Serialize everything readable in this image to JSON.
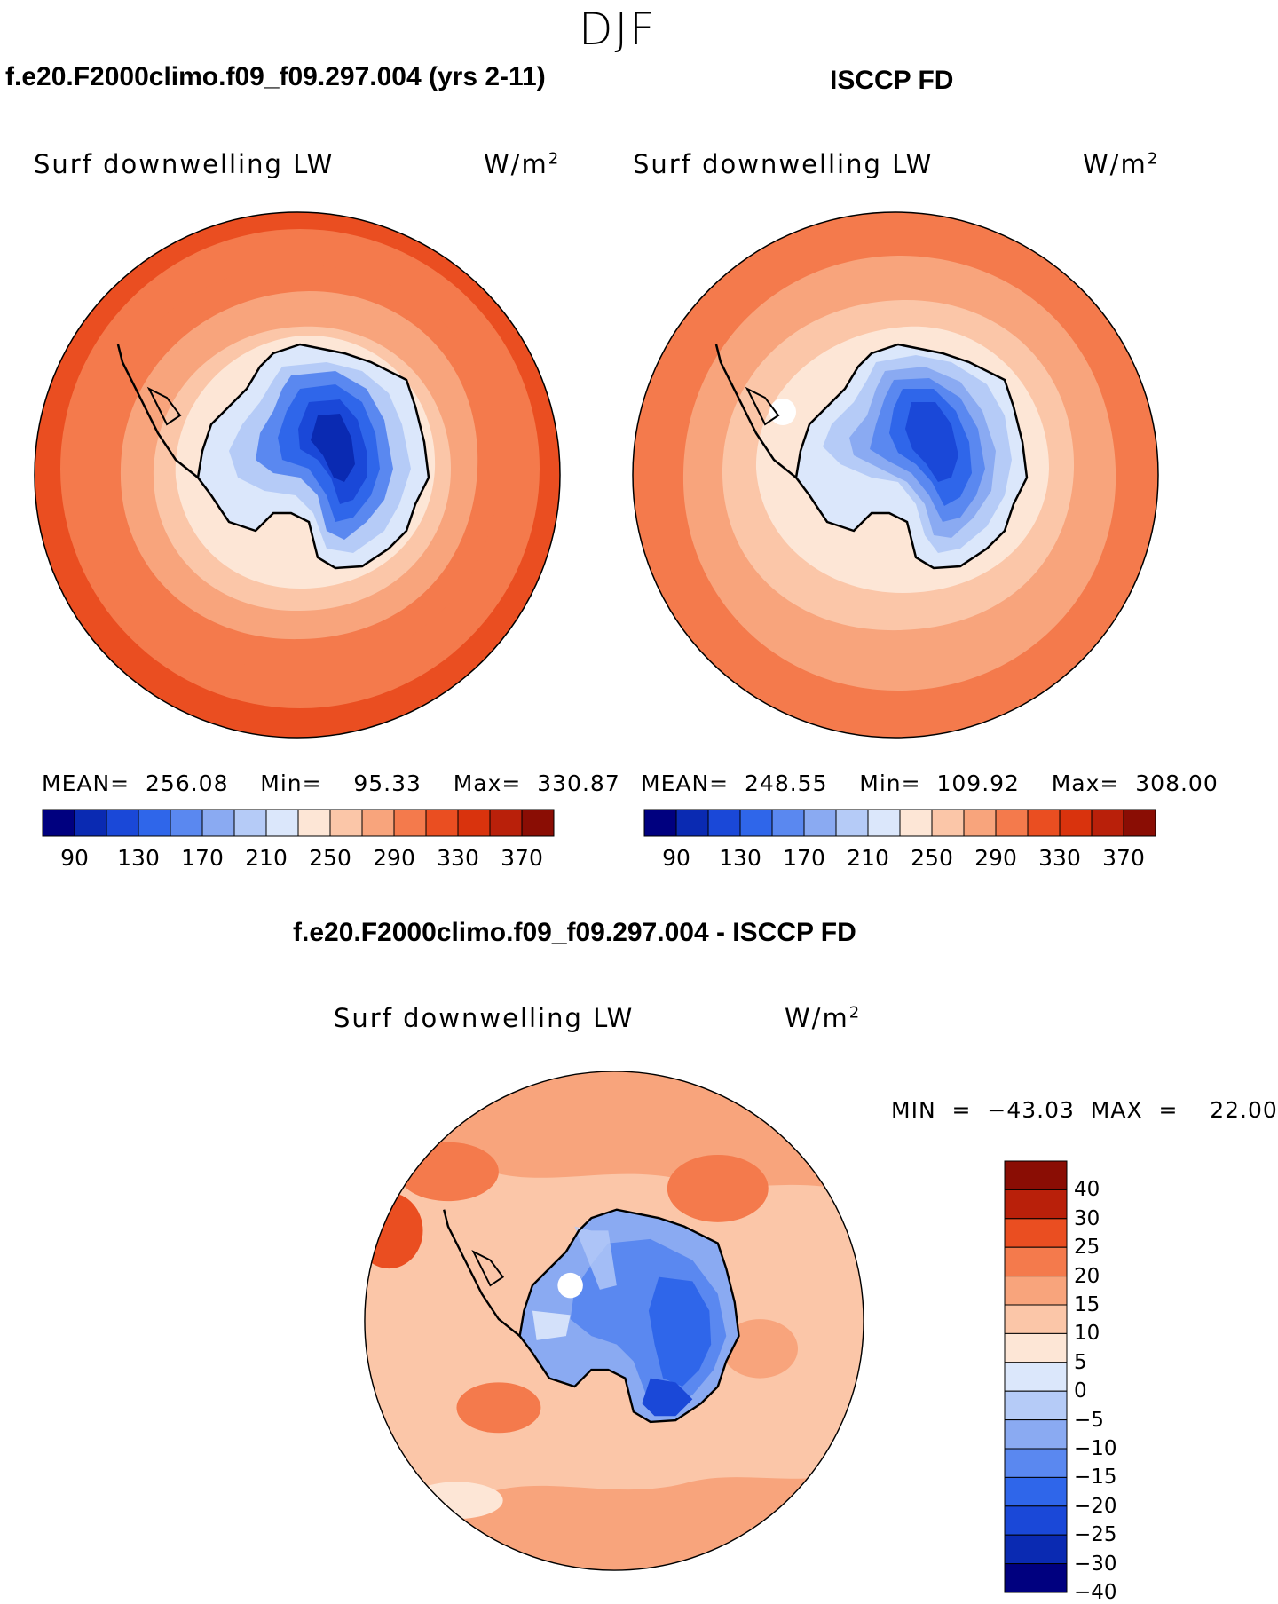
{
  "figure": {
    "season": "DJF",
    "left_title": "f.e20.F2000climo.f09_f09.297.004 (yrs 2-11)",
    "right_title": "ISCCP FD",
    "diff_title": "f.e20.F2000climo.f09_f09.297.004 - ISCCP FD"
  },
  "panels": {
    "model": {
      "variable": "Surf  downwelling  LW",
      "units": "W/m",
      "units_exp": "2",
      "stats": "MEAN=  256.08    Min=    95.33    Max=  330.87"
    },
    "obs": {
      "variable": "Surf  downwelling  LW",
      "units": "W/m",
      "units_exp": "2",
      "stats": "MEAN=  248.55    Min=  109.92    Max=  308.00"
    },
    "diff": {
      "variable": "Surf  downwelling  LW",
      "units": "W/m",
      "units_exp": "2",
      "stats": "MIN  =  −43.03  MAX  =    22.00"
    }
  },
  "colorbars": {
    "abs_colors": [
      "#00007f",
      "#0a2ab2",
      "#1a48d8",
      "#2f66ea",
      "#5a88f0",
      "#8aaaf2",
      "#b5cbf7",
      "#dbe7fb",
      "#fde6d6",
      "#fbc6a8",
      "#f8a47c",
      "#f47a4c",
      "#ea4e21",
      "#d9330d",
      "#b9200a",
      "#8a0d04"
    ],
    "abs_labels": [
      "90",
      "130",
      "170",
      "210",
      "250",
      "290",
      "330",
      "370"
    ],
    "diff_colors": [
      "#00007f",
      "#0a2ab2",
      "#1a48d8",
      "#2f66ea",
      "#5a88f0",
      "#8aaaf2",
      "#b5cbf7",
      "#dbe7fb",
      "#fde6d6",
      "#fbc6a8",
      "#f8a47c",
      "#f47a4c",
      "#ea4e21",
      "#b9200a",
      "#8a0d04"
    ],
    "diff_labels": [
      "40",
      "30",
      "25",
      "20",
      "15",
      "10",
      "5",
      "0",
      "−5",
      "−10",
      "−15",
      "−20",
      "−25",
      "−30",
      "−40"
    ]
  }
}
